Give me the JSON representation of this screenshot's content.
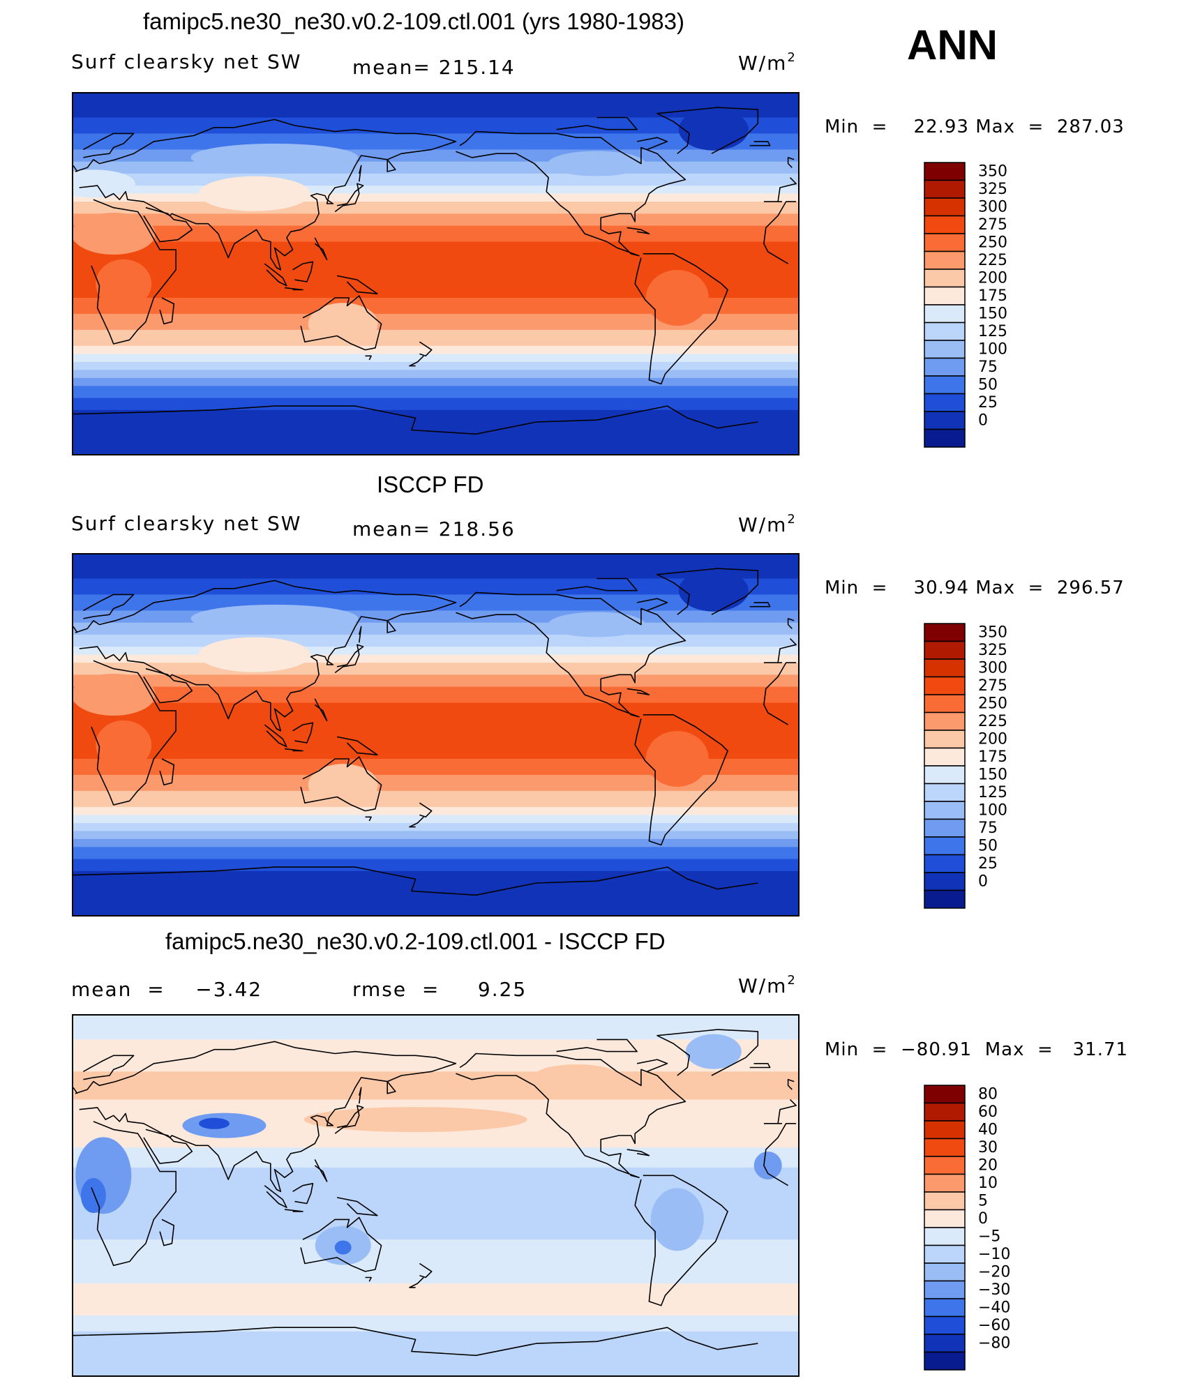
{
  "header": {
    "season": "ANN"
  },
  "chart_data": [
    {
      "type": "heatmap",
      "title": "famipc5.ne30_ne30.v0.2-109.ctl.001 (yrs 1980-1983)",
      "variable": "Surf clearsky net SW",
      "stat_text": "mean= 215.14",
      "units_base": "W/m",
      "units_exp": "2",
      "min_label": "Min",
      "min_value": "22.93",
      "max_label": "Max",
      "max_value": "287.03",
      "eq": "=",
      "levels": [
        "350",
        "325",
        "300",
        "275",
        "250",
        "225",
        "200",
        "175",
        "150",
        "125",
        "100",
        "75",
        "50",
        "25",
        "0"
      ],
      "colors": [
        "#7f0000",
        "#b01a00",
        "#d63200",
        "#f04a10",
        "#fa6c35",
        "#fb9a6d",
        "#fcc9a8",
        "#fde9dc",
        "#dbeafb",
        "#bcd5fa",
        "#9bbdf6",
        "#6f9cf0",
        "#3f75ea",
        "#1f4fd8",
        "#1133b8",
        "#081c8f"
      ],
      "mean": 215.14,
      "min": 22.93,
      "max": 287.03
    },
    {
      "type": "heatmap",
      "title": "ISCCP FD",
      "variable": "Surf clearsky net SW",
      "stat_text": "mean= 218.56",
      "units_base": "W/m",
      "units_exp": "2",
      "min_label": "Min",
      "min_value": "30.94",
      "max_label": "Max",
      "max_value": "296.57",
      "eq": "=",
      "levels": [
        "350",
        "325",
        "300",
        "275",
        "250",
        "225",
        "200",
        "175",
        "150",
        "125",
        "100",
        "75",
        "50",
        "25",
        "0"
      ],
      "colors": [
        "#7f0000",
        "#b01a00",
        "#d63200",
        "#f04a10",
        "#fa6c35",
        "#fb9a6d",
        "#fcc9a8",
        "#fde9dc",
        "#dbeafb",
        "#bcd5fa",
        "#9bbdf6",
        "#6f9cf0",
        "#3f75ea",
        "#1f4fd8",
        "#1133b8",
        "#081c8f"
      ],
      "mean": 218.56,
      "min": 30.94,
      "max": 296.57
    },
    {
      "type": "heatmap",
      "title": "famipc5.ne30_ne30.v0.2-109.ctl.001 - ISCCP FD",
      "mean_label": "mean",
      "mean_value": "−3.42",
      "rmse_label": "rmse",
      "rmse_value": "9.25",
      "units_base": "W/m",
      "units_exp": "2",
      "min_label": "Min",
      "min_value": "−80.91",
      "max_label": "Max",
      "max_value": "31.71",
      "eq": "=",
      "levels": [
        "80",
        "60",
        "40",
        "30",
        "20",
        "10",
        "5",
        "0",
        "−5",
        "−10",
        "−20",
        "−30",
        "−40",
        "−60",
        "−80"
      ],
      "colors": [
        "#7f0000",
        "#b01a00",
        "#d63200",
        "#f04a10",
        "#fa6c35",
        "#fb9a6d",
        "#fcc9a8",
        "#fde9dc",
        "#dbeafb",
        "#bcd5fa",
        "#9bbdf6",
        "#6f9cf0",
        "#3f75ea",
        "#1f4fd8",
        "#1133b8",
        "#081c8f"
      ],
      "mean": -3.42,
      "rmse": 9.25,
      "min": -80.91,
      "max": 31.71
    }
  ]
}
